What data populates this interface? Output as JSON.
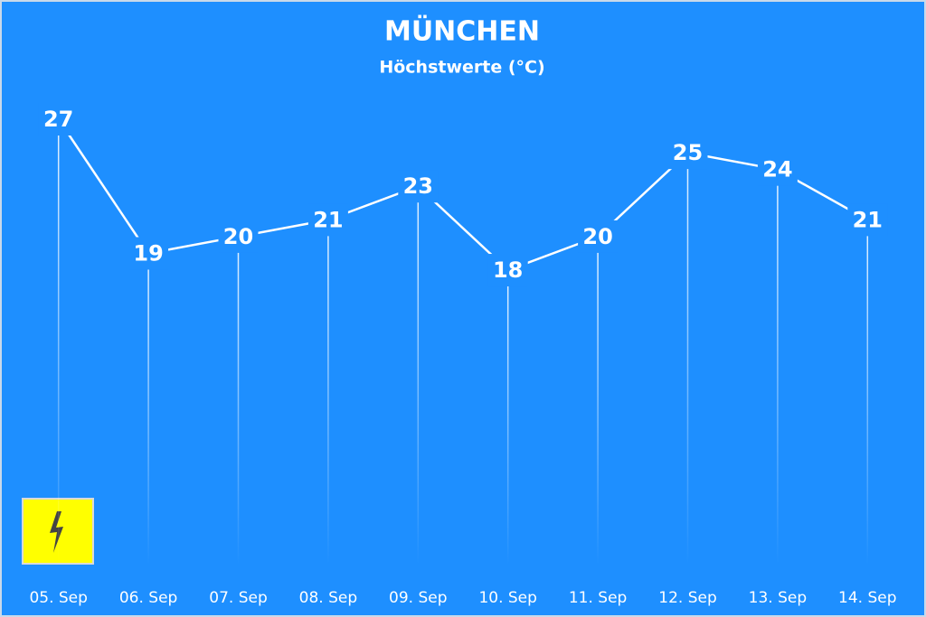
{
  "chart_data": {
    "type": "line",
    "title": "MÜNCHEN",
    "subtitle": "Höchstwerte (°C)",
    "categories": [
      "05. Sep",
      "06. Sep",
      "07. Sep",
      "08. Sep",
      "09. Sep",
      "10. Sep",
      "11. Sep",
      "12. Sep",
      "13. Sep",
      "14. Sep"
    ],
    "values": [
      27,
      19,
      20,
      21,
      23,
      18,
      20,
      25,
      24,
      21
    ],
    "color": "#ffffff"
  }
}
